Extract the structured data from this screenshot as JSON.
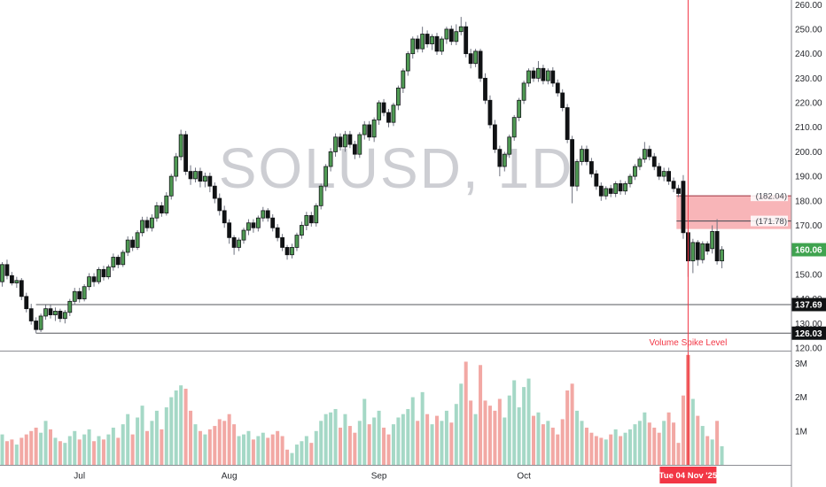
{
  "chart_data": {
    "type": "candlestick",
    "title": "SOLUSD, 1D",
    "symbol": "SOLUSD",
    "timeframe": "1D",
    "watermark": "SOLUSD, 1D",
    "grid": false,
    "legend_position": "none",
    "price_axis_ticks": [
      260,
      250,
      240,
      230,
      220,
      210,
      200,
      190,
      180,
      170,
      160,
      150,
      140,
      130,
      120
    ],
    "price_axis_range": [
      118.9,
      261.9
    ],
    "volume_axis_ticks": [
      {
        "label": "3M",
        "value": 3
      },
      {
        "label": "2M",
        "value": 2
      },
      {
        "label": "1M",
        "value": 1
      }
    ],
    "volume_axis_range": [
      0,
      3.35
    ],
    "months": [
      {
        "label": "Jul",
        "index": 16
      },
      {
        "label": "Aug",
        "index": 47
      },
      {
        "label": "Sep",
        "index": 78
      },
      {
        "label": "Oct",
        "index": 108
      }
    ],
    "candles": [
      [
        147,
        155,
        145,
        154
      ],
      [
        154,
        156,
        148,
        149.5
      ],
      [
        149.5,
        151,
        145.5,
        146.5
      ],
      [
        146.5,
        149,
        144.5,
        147.5
      ],
      [
        147.5,
        148.5,
        139.5,
        141
      ],
      [
        141,
        142.5,
        134.5,
        136
      ],
      [
        136,
        138,
        129.5,
        131
      ],
      [
        131,
        132.5,
        126,
        127.5
      ],
      [
        127.5,
        134,
        126.5,
        133
      ],
      [
        133,
        137.5,
        131.5,
        136
      ],
      [
        136,
        137.5,
        132,
        133.5
      ],
      [
        133.5,
        136.5,
        131,
        135
      ],
      [
        135,
        136,
        130.5,
        132
      ],
      [
        132,
        135.5,
        130,
        134.5
      ],
      [
        134.5,
        140,
        133,
        139
      ],
      [
        139,
        144.5,
        137.5,
        143
      ],
      [
        143,
        144.5,
        138.5,
        140
      ],
      [
        140,
        146,
        139,
        145
      ],
      [
        145,
        150.5,
        143.5,
        149
      ],
      [
        149,
        150.5,
        145,
        147
      ],
      [
        147,
        153,
        146,
        152
      ],
      [
        152,
        153.5,
        147.5,
        149
      ],
      [
        149,
        154,
        148,
        153
      ],
      [
        153,
        158.5,
        151.5,
        157
      ],
      [
        157,
        158,
        152.5,
        154
      ],
      [
        154,
        160,
        153,
        159
      ],
      [
        159,
        165.5,
        157.5,
        164
      ],
      [
        164,
        165.5,
        159.5,
        161
      ],
      [
        161,
        168,
        160,
        167
      ],
      [
        167,
        173.5,
        165.5,
        172
      ],
      [
        172,
        173.5,
        167.5,
        169
      ],
      [
        169,
        174.5,
        167.5,
        173
      ],
      [
        173,
        179.5,
        171.5,
        178
      ],
      [
        178,
        179.5,
        173.5,
        175
      ],
      [
        175,
        183.5,
        174,
        182
      ],
      [
        182,
        191,
        180.5,
        190
      ],
      [
        190,
        199.5,
        188,
        198
      ],
      [
        198,
        209,
        196.5,
        207
      ],
      [
        207,
        208.5,
        190.5,
        192
      ],
      [
        192,
        194.5,
        186.5,
        189
      ],
      [
        189,
        193.5,
        187.5,
        192
      ],
      [
        192,
        193.5,
        185.5,
        188
      ],
      [
        188,
        191.5,
        185.5,
        190
      ],
      [
        190,
        191.5,
        183.5,
        186
      ],
      [
        186,
        187.5,
        179,
        181
      ],
      [
        181,
        183,
        174,
        176
      ],
      [
        176,
        178,
        169,
        171
      ],
      [
        171,
        172.5,
        162.5,
        165
      ],
      [
        165,
        166,
        158,
        161
      ],
      [
        161,
        165,
        159.5,
        164
      ],
      [
        164,
        169,
        162.5,
        168
      ],
      [
        168,
        172.5,
        166,
        171
      ],
      [
        171,
        172.5,
        167,
        169
      ],
      [
        169,
        174,
        167.5,
        173
      ],
      [
        173,
        177.5,
        171.5,
        176
      ],
      [
        176,
        177,
        171.5,
        173
      ],
      [
        173,
        174.5,
        167.5,
        169
      ],
      [
        169,
        170.5,
        163.5,
        165
      ],
      [
        165,
        166.5,
        159.5,
        161
      ],
      [
        161,
        162,
        156,
        158
      ],
      [
        158,
        162.5,
        156.5,
        161
      ],
      [
        161,
        167,
        159.5,
        166
      ],
      [
        166,
        171.5,
        164.5,
        170
      ],
      [
        170,
        175.5,
        168,
        174
      ],
      [
        174,
        175.5,
        169.5,
        171
      ],
      [
        171,
        179,
        169.5,
        178
      ],
      [
        178,
        187,
        176.5,
        186
      ],
      [
        186,
        195,
        184,
        194
      ],
      [
        194,
        201.5,
        192,
        200
      ],
      [
        200,
        207.5,
        198,
        206
      ],
      [
        206,
        207.5,
        200.5,
        202
      ],
      [
        202,
        208.5,
        200,
        207
      ],
      [
        207,
        208.5,
        201.5,
        203
      ],
      [
        203,
        204.5,
        197,
        199
      ],
      [
        199,
        208,
        197.5,
        207
      ],
      [
        207,
        212.5,
        205,
        211
      ],
      [
        211,
        212.5,
        204.5,
        206
      ],
      [
        206,
        214,
        204,
        213
      ],
      [
        213,
        221,
        211,
        220
      ],
      [
        220,
        221.5,
        214.5,
        216
      ],
      [
        216,
        217.5,
        210,
        212
      ],
      [
        212,
        220,
        210.5,
        219
      ],
      [
        219,
        227,
        217,
        226
      ],
      [
        226,
        234,
        224,
        233
      ],
      [
        233,
        241,
        231,
        240
      ],
      [
        240,
        247,
        238,
        246
      ],
      [
        246,
        247.5,
        240.5,
        242
      ],
      [
        242,
        251,
        240.5,
        248
      ],
      [
        248,
        249.5,
        242.5,
        244
      ],
      [
        244,
        248,
        241.5,
        247
      ],
      [
        247,
        248.5,
        239.5,
        241
      ],
      [
        241,
        247,
        239.5,
        246
      ],
      [
        246,
        251,
        244,
        250
      ],
      [
        250,
        251.5,
        243.5,
        245
      ],
      [
        245,
        252,
        243.5,
        249
      ],
      [
        249,
        255,
        247.5,
        251
      ],
      [
        251,
        253,
        238.5,
        240
      ],
      [
        240,
        242,
        234,
        236
      ],
      [
        236,
        242,
        234.5,
        241
      ],
      [
        241,
        242,
        228.5,
        230
      ],
      [
        230,
        232,
        219.5,
        221
      ],
      [
        221,
        223,
        209.5,
        211
      ],
      [
        211,
        213,
        199.5,
        201
      ],
      [
        201,
        202.5,
        190,
        194
      ],
      [
        194,
        200,
        192,
        199
      ],
      [
        199,
        207,
        197.5,
        206
      ],
      [
        206,
        215,
        204.5,
        214
      ],
      [
        214,
        222,
        212.5,
        221
      ],
      [
        221,
        229,
        219.5,
        228
      ],
      [
        228,
        234,
        226.5,
        233
      ],
      [
        233,
        234.5,
        228.5,
        230
      ],
      [
        230,
        237,
        228.5,
        234
      ],
      [
        234,
        235.5,
        227.5,
        229
      ],
      [
        229,
        234,
        227.5,
        233
      ],
      [
        233,
        234.5,
        226.5,
        228
      ],
      [
        228,
        229.5,
        222.5,
        224
      ],
      [
        224,
        225.5,
        216.5,
        218
      ],
      [
        218,
        219.5,
        203.5,
        205
      ],
      [
        205,
        206.5,
        179,
        186
      ],
      [
        186,
        197,
        184,
        196
      ],
      [
        196,
        202.5,
        194.5,
        201
      ],
      [
        201,
        202.5,
        194.5,
        196
      ],
      [
        196,
        197.5,
        189.5,
        191
      ],
      [
        191,
        192.5,
        184.5,
        186
      ],
      [
        186,
        187.5,
        180,
        182
      ],
      [
        182,
        186,
        180.5,
        185
      ],
      [
        185,
        186.5,
        181.5,
        183
      ],
      [
        183,
        188,
        181.5,
        187
      ],
      [
        187,
        188.5,
        182.5,
        184
      ],
      [
        184,
        188,
        182.5,
        187
      ],
      [
        187,
        191,
        185.5,
        190
      ],
      [
        190,
        195,
        188.5,
        194
      ],
      [
        194,
        198,
        192.5,
        197
      ],
      [
        197,
        204,
        195.5,
        201
      ],
      [
        201,
        202.5,
        196.5,
        198
      ],
      [
        198,
        199.5,
        192.5,
        194
      ],
      [
        194,
        195.5,
        188.5,
        190
      ],
      [
        190,
        193.5,
        188,
        192
      ],
      [
        192,
        193.5,
        186.5,
        188
      ],
      [
        188,
        189.5,
        183.5,
        185
      ],
      [
        185,
        186.5,
        181.5,
        183
      ],
      [
        188,
        190.5,
        164.5,
        167
      ],
      [
        167,
        168,
        149,
        155.5
      ],
      [
        155.5,
        164.5,
        150.5,
        163
      ],
      [
        163,
        164,
        153.5,
        156
      ],
      [
        156,
        163.5,
        154.5,
        162.5
      ],
      [
        162.5,
        163.5,
        158,
        159.5
      ],
      [
        160.5,
        170,
        158.5,
        167.5
      ],
      [
        167.5,
        172.5,
        154,
        155.5
      ],
      [
        155.5,
        161.5,
        152.5,
        160.06
      ]
    ],
    "volumes": [
      0.9,
      0.7,
      0.75,
      0.6,
      0.8,
      0.9,
      1.0,
      1.1,
      0.95,
      1.3,
      1.05,
      0.8,
      0.7,
      0.65,
      0.85,
      1.0,
      0.75,
      0.9,
      1.05,
      0.7,
      0.85,
      0.75,
      0.9,
      1.1,
      0.8,
      1.2,
      1.5,
      0.9,
      1.4,
      1.75,
      1.0,
      1.3,
      1.6,
      1.05,
      1.7,
      2.0,
      2.2,
      2.35,
      2.25,
      1.6,
      1.2,
      1.0,
      0.9,
      1.05,
      1.15,
      1.35,
      1.3,
      1.5,
      1.2,
      0.85,
      0.9,
      1.0,
      0.75,
      0.85,
      0.95,
      0.8,
      0.9,
      1.0,
      0.85,
      0.45,
      0.35,
      0.6,
      0.7,
      0.85,
      0.65,
      1.0,
      1.3,
      1.5,
      1.55,
      1.65,
      1.1,
      1.5,
      1.15,
      0.95,
      1.3,
      1.95,
      1.2,
      1.4,
      1.6,
      1.1,
      0.9,
      1.2,
      1.4,
      1.5,
      1.65,
      2.0,
      1.3,
      2.15,
      1.5,
      1.2,
      1.45,
      1.3,
      1.6,
      1.25,
      1.8,
      2.4,
      3.05,
      1.9,
      1.5,
      2.95,
      1.9,
      1.75,
      1.6,
      1.95,
      1.4,
      2.05,
      2.5,
      1.7,
      2.3,
      2.55,
      1.45,
      1.55,
      1.2,
      1.3,
      1.1,
      0.9,
      1.35,
      2.2,
      2.4,
      1.6,
      1.3,
      1.1,
      0.95,
      0.85,
      0.8,
      0.75,
      0.9,
      1.05,
      0.85,
      0.95,
      1.05,
      1.2,
      1.3,
      1.55,
      1.25,
      1.1,
      0.95,
      1.3,
      1.55,
      1.25,
      0.65,
      2.05,
      3.25,
      1.95,
      1.45,
      1.15,
      0.85,
      0.75,
      1.3,
      0.55
    ],
    "volume_spike_index": 142,
    "last_price_badge": {
      "label": "160.06",
      "value": 160.06
    },
    "level_badges": [
      {
        "label": "137.69",
        "value": 137.69
      },
      {
        "label": "126.03",
        "value": 126.03
      }
    ],
    "horizontal_rays": [
      {
        "value": 137.69,
        "start_index": 7
      },
      {
        "value": 126.03,
        "start_index": 7
      }
    ],
    "zone": {
      "top": 182.04,
      "mid": 171.78,
      "bottom": 168.5,
      "start_index": 139.6,
      "top_label": "(182.04)",
      "mid_label": "(171.78)"
    },
    "event_line": {
      "index": 142,
      "date_label": "Tue 04 Nov '25"
    },
    "annotation": {
      "text": "Volume Spike Level"
    }
  },
  "colors": {
    "up_fill": "#4f9a53",
    "up_stroke": "#15181c",
    "down_fill": "#101214",
    "down_stroke": "#101214",
    "wick": "#6f7380",
    "vol_up": "#a5d8c6",
    "vol_down": "#f2a8a4",
    "vol_spike": "#ef6e6b",
    "red": "#f23645",
    "zone_fill": "rgba(240,90,98,0.45)",
    "zone_top_line": "#9c323f",
    "zone_mid_line": "#42464e",
    "ray": "#55575c",
    "axis_text": "#27292e",
    "border": "#8c8e94",
    "badge_green": "#3fa34f",
    "badge_dark": "#101214",
    "watermark": "#cdced3"
  }
}
